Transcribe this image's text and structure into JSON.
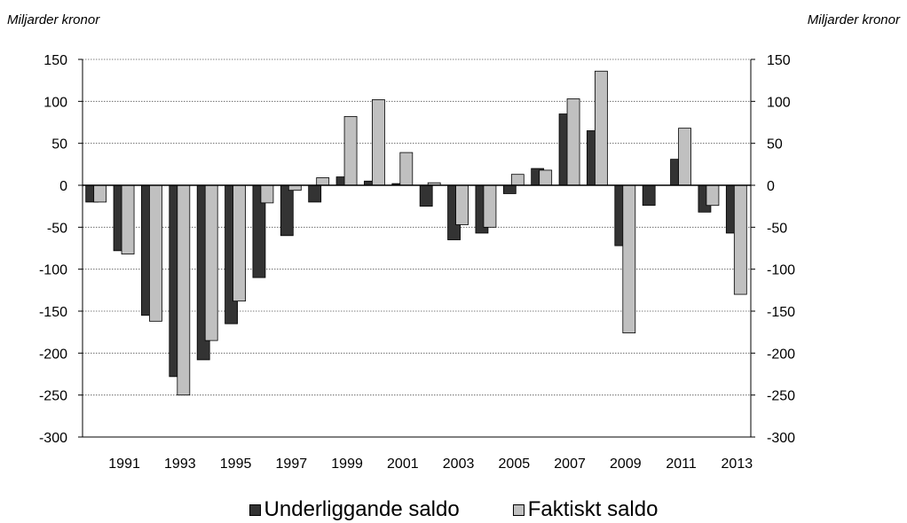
{
  "unit_left": "Miljarder kronor",
  "unit_right": "Miljarder kronor",
  "colors": {
    "underliggande": "#333333",
    "faktiskt": "#c0c0c0"
  },
  "chart_data": {
    "type": "bar",
    "ylim": [
      -300,
      150
    ],
    "yticks": [
      150,
      100,
      50,
      0,
      -50,
      -100,
      -150,
      -200,
      -250,
      -300
    ],
    "grid": true,
    "legend_position": "bottom",
    "categories": [
      "1990",
      "1991",
      "1992",
      "1993",
      "1994",
      "1995",
      "1996",
      "1997",
      "1998",
      "1999",
      "2000",
      "2001",
      "2002",
      "2003",
      "2004",
      "2005",
      "2006",
      "2007",
      "2008",
      "2009",
      "2010",
      "2011",
      "2012",
      "2013"
    ],
    "xtick_labels": [
      "1991",
      "1993",
      "1995",
      "1997",
      "1999",
      "2001",
      "2003",
      "2005",
      "2007",
      "2009",
      "2011",
      "2013"
    ],
    "series": [
      {
        "name": "Underliggande saldo",
        "values": [
          -20,
          -78,
          -155,
          -228,
          -208,
          -165,
          -110,
          -60,
          -20,
          10,
          5,
          2,
          -25,
          -65,
          -57,
          -10,
          20,
          85,
          65,
          -72,
          -24,
          31,
          -32,
          -57
        ]
      },
      {
        "name": "Faktiskt saldo",
        "values": [
          -20,
          -82,
          -162,
          -250,
          -185,
          -138,
          -21,
          -6,
          9,
          82,
          102,
          39,
          3,
          -47,
          -50,
          13,
          18,
          103,
          136,
          -176,
          0,
          68,
          -24,
          -130
        ]
      }
    ]
  }
}
